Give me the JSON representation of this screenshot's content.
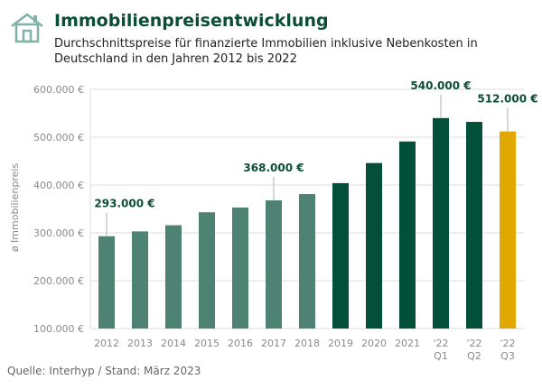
{
  "header": {
    "title": "Immobilienpreisentwicklung",
    "subtitle": "Durchschnittspreise für finanzierte Immobilien inklusive Nebenkosten in Deutschland in den Jahren 2012 bis 2022",
    "icon": "house-icon"
  },
  "footer": {
    "source": "Quelle: Interhyp  / Stand: März 2023"
  },
  "colors": {
    "past": "#4e8272",
    "recent": "#02503a",
    "latest": "#e0a800",
    "title": "#0b4d35"
  },
  "chart_data": {
    "type": "bar",
    "title": "Immobilienpreisentwicklung",
    "xlabel": "",
    "ylabel": "ø Immobilienpreis",
    "ylim": [
      100000,
      600000
    ],
    "yticks": [
      100000,
      200000,
      300000,
      400000,
      500000,
      600000
    ],
    "ytick_labels": [
      "100.000 €",
      "200.000 €",
      "300.000 €",
      "400.000 €",
      "500.000 €",
      "600.000 €"
    ],
    "grid": "horizontal",
    "categories": [
      "2012",
      "2013",
      "2014",
      "2015",
      "2016",
      "2017",
      "2018",
      "2019",
      "2020",
      "2021",
      "'22 Q1",
      "'22 Q2",
      "'22 Q3"
    ],
    "values": [
      293000,
      303000,
      316000,
      343000,
      353000,
      368000,
      381000,
      404000,
      446000,
      491000,
      540000,
      532000,
      512000
    ],
    "color_groups": [
      "past",
      "past",
      "past",
      "past",
      "past",
      "past",
      "past",
      "recent",
      "recent",
      "recent",
      "recent",
      "recent",
      "latest"
    ],
    "annotations": [
      {
        "category": "2012",
        "label": "293.000 €"
      },
      {
        "category": "2017",
        "label": "368.000 €"
      },
      {
        "category": "'22 Q1",
        "label": "540.000 €"
      },
      {
        "category": "'22 Q3",
        "label": "512.000 €"
      }
    ]
  }
}
